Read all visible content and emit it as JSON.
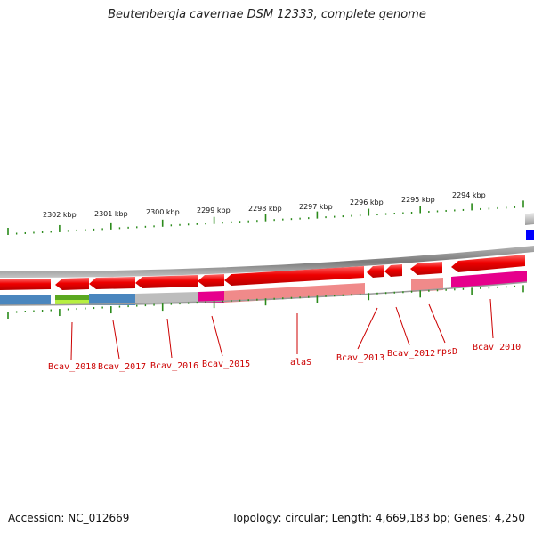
{
  "title": "Beutenbergia cavernae DSM 12333, complete genome",
  "footer": {
    "accession": "Accession: NC_012669",
    "summary": "Topology: circular; Length: 4,669,183 bp; Genes: 4,250"
  },
  "scale": {
    "unit": "kbp",
    "tick_labels": [
      "2302 kbp",
      "2301 kbp",
      "2300 kbp",
      "2299 kbp",
      "2298 kbp",
      "2297 kbp",
      "2296 kbp",
      "2295 kbp",
      "2294 kbp"
    ]
  },
  "genes": [
    {
      "label": "Bcav_2018",
      "strand": "reverse",
      "color": "#4a86be"
    },
    {
      "label": "Bcav_2017",
      "strand": "reverse",
      "color": "#4a86be"
    },
    {
      "label": "Bcav_2016",
      "strand": "reverse",
      "color": "#bdbdbd"
    },
    {
      "label": "Bcav_2015",
      "strand": "reverse",
      "color": "#e6008c"
    },
    {
      "label": "alaS",
      "strand": "reverse",
      "color": "#f08a8a"
    },
    {
      "label": "Bcav_2013",
      "strand": "reverse",
      "color": "#f08a8a"
    },
    {
      "label": "Bcav_2012",
      "strand": "reverse",
      "color": "#f08a8a"
    },
    {
      "label": "rpsD",
      "strand": "reverse",
      "color": "#f08a8a"
    },
    {
      "label": "Bcav_2010",
      "strand": "reverse",
      "color": "#e6008c"
    }
  ],
  "colors": {
    "gene_arrow": "#e60000",
    "backbone": "#8a8a8a",
    "tick": "#2a8a1a",
    "label": "#cc0000",
    "cog_blue": "#4a86be",
    "cog_green": "#5aa820",
    "cog_lime": "#b6f040",
    "cog_magenta": "#e6008c",
    "cog_grey": "#bdbdbd",
    "cog_pink": "#f08a8a",
    "blue_marker": "#0000ff"
  }
}
